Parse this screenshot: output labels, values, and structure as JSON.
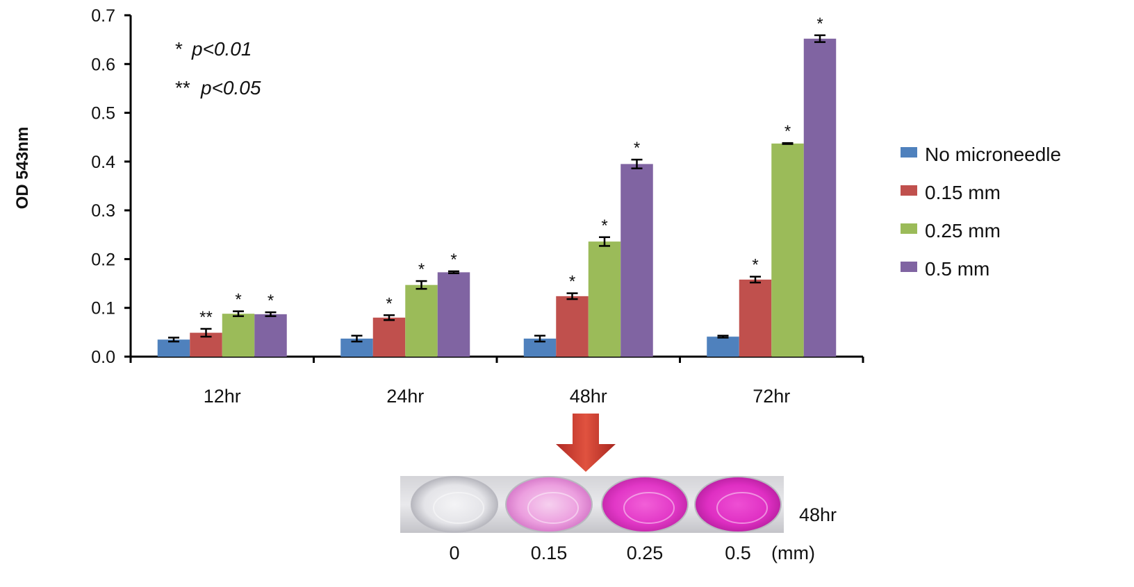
{
  "chart_data": {
    "type": "bar",
    "ylabel": "OD 543nm",
    "xlabel": "",
    "ylim": [
      0,
      0.7
    ],
    "yticks": [
      "0.0",
      "0.1",
      "0.2",
      "0.3",
      "0.4",
      "0.5",
      "0.6",
      "0.7"
    ],
    "grid": false,
    "legend_position": "right",
    "categories": [
      "12hr",
      "24hr",
      "48hr",
      "72hr"
    ],
    "series": [
      {
        "name": "No microneedle",
        "color": "#4F81BD",
        "values": [
          0.035,
          0.037,
          0.037,
          0.041
        ],
        "errors": [
          0.004,
          0.006,
          0.006,
          0.002
        ],
        "significance": [
          "",
          "",
          "",
          ""
        ]
      },
      {
        "name": "0.15 mm",
        "color": "#C0504D",
        "values": [
          0.049,
          0.08,
          0.124,
          0.158
        ],
        "errors": [
          0.008,
          0.005,
          0.006,
          0.006
        ],
        "significance": [
          "**",
          "*",
          "*",
          "*"
        ]
      },
      {
        "name": "0.25 mm",
        "color": "#9BBB59",
        "values": [
          0.088,
          0.147,
          0.236,
          0.437
        ],
        "errors": [
          0.005,
          0.008,
          0.009,
          0.001
        ],
        "significance": [
          "*",
          "*",
          "*",
          "*"
        ]
      },
      {
        "name": "0.5 mm",
        "color": "#8064A2",
        "values": [
          0.087,
          0.173,
          0.395,
          0.652
        ],
        "errors": [
          0.004,
          0.002,
          0.009,
          0.007
        ],
        "significance": [
          "*",
          "*",
          "*",
          "*"
        ]
      }
    ],
    "annotations": [
      {
        "symbol": "*",
        "text": "p<0.01"
      },
      {
        "symbol": "**",
        "text": "p<0.05"
      }
    ]
  },
  "inset": {
    "time_label": "48hr",
    "well_labels": [
      "0",
      "0.15",
      "0.25",
      "0.5"
    ],
    "unit_label": "(mm)",
    "arrow_color": "#C0392B"
  }
}
